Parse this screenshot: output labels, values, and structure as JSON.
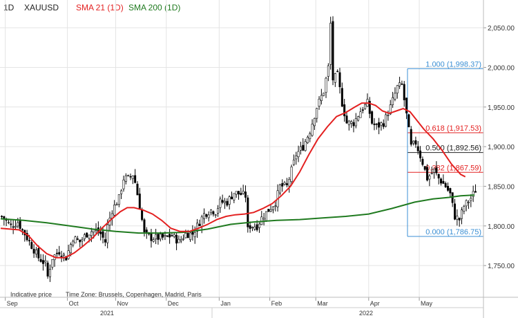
{
  "header": {
    "interval": "1D",
    "symbol": "XAUUSD",
    "sma21_label": "SMA 21  (1D)",
    "sma200_label": "SMA 200  (1D)"
  },
  "footer": {
    "price_note": "Indicative price",
    "timezone_note": "Time Zone: Brussels, Copenhagen, Madrid, Paris"
  },
  "colors": {
    "up": "#000000",
    "down": "#000000",
    "sma21": "#e32020",
    "sma200": "#1f7a1f",
    "fib_blue": "#3b8fd4",
    "fib_red": "#e32020",
    "fib_black": "#222222",
    "grid": "#e4e4e4"
  },
  "chart_data": {
    "type": "candlestick",
    "symbol": "XAUUSD",
    "ylim": [
      1710,
      2085
    ],
    "y_ticks": [
      1750,
      1800,
      1850,
      1900,
      1950,
      2000,
      2050
    ],
    "y_tick_labels": [
      "1,750.00",
      "1,800.00",
      "1,850.00",
      "1,900.00",
      "1,950.00",
      "2,000.00",
      "2,050.00"
    ],
    "x_tick_labels": [
      "Sep",
      "Oct",
      "Nov",
      "Dec",
      "Jan",
      "Feb",
      "Mar",
      "Apr",
      "May"
    ],
    "year_labels": [
      "2021",
      "2022"
    ],
    "close_points": [
      [
        0,
        1812
      ],
      [
        4,
        1800
      ],
      [
        7,
        1805
      ],
      [
        10,
        1790
      ],
      [
        13,
        1775
      ],
      [
        16,
        1760
      ],
      [
        19,
        1752
      ],
      [
        20,
        1736
      ],
      [
        22,
        1760
      ],
      [
        25,
        1768
      ],
      [
        28,
        1760
      ],
      [
        31,
        1785
      ],
      [
        34,
        1780
      ],
      [
        37,
        1790
      ],
      [
        40,
        1795
      ],
      [
        43,
        1790
      ],
      [
        45,
        1780
      ],
      [
        46,
        1800
      ],
      [
        48,
        1820
      ],
      [
        51,
        1835
      ],
      [
        53,
        1860
      ],
      [
        55,
        1860
      ],
      [
        57,
        1865
      ],
      [
        58,
        1855
      ],
      [
        60,
        1825
      ],
      [
        62,
        1790
      ],
      [
        65,
        1785
      ],
      [
        68,
        1785
      ],
      [
        71,
        1785
      ],
      [
        74,
        1788
      ],
      [
        77,
        1780
      ],
      [
        80,
        1790
      ],
      [
        83,
        1790
      ],
      [
        86,
        1805
      ],
      [
        88,
        1815
      ],
      [
        91,
        1820
      ],
      [
        93,
        1818
      ],
      [
        95,
        1830
      ],
      [
        98,
        1830
      ],
      [
        101,
        1842
      ],
      [
        104,
        1840
      ],
      [
        106,
        1838
      ],
      [
        107,
        1795
      ],
      [
        108,
        1800
      ],
      [
        111,
        1800
      ],
      [
        113,
        1810
      ],
      [
        116,
        1820
      ],
      [
        119,
        1830
      ],
      [
        121,
        1850
      ],
      [
        124,
        1850
      ],
      [
        126,
        1870
      ],
      [
        128,
        1890
      ],
      [
        131,
        1900
      ],
      [
        134,
        1920
      ],
      [
        137,
        1950
      ],
      [
        140,
        1970
      ],
      [
        142,
        2000
      ],
      [
        143,
        2055
      ],
      [
        144,
        1985
      ],
      [
        146,
        1990
      ],
      [
        148,
        1955
      ],
      [
        150,
        1930
      ],
      [
        153,
        1930
      ],
      [
        156,
        1945
      ],
      [
        159,
        1955
      ],
      [
        161,
        1930
      ],
      [
        163,
        1925
      ],
      [
        166,
        1930
      ],
      [
        169,
        1950
      ],
      [
        172,
        1975
      ],
      [
        174,
        1978
      ],
      [
        176,
        1940
      ],
      [
        178,
        1900
      ],
      [
        180,
        1905
      ],
      [
        183,
        1880
      ],
      [
        185,
        1860
      ],
      [
        188,
        1870
      ],
      [
        190,
        1860
      ],
      [
        193,
        1850
      ],
      [
        195,
        1840
      ],
      [
        197,
        1812
      ],
      [
        199,
        1808
      ],
      [
        201,
        1825
      ],
      [
        204,
        1835
      ],
      [
        206,
        1845
      ]
    ],
    "sma21": [
      [
        0,
        1797
      ],
      [
        8,
        1795
      ],
      [
        12,
        1788
      ],
      [
        16,
        1775
      ],
      [
        20,
        1765
      ],
      [
        24,
        1760
      ],
      [
        28,
        1760
      ],
      [
        32,
        1766
      ],
      [
        36,
        1775
      ],
      [
        40,
        1785
      ],
      [
        44,
        1797
      ],
      [
        48,
        1808
      ],
      [
        52,
        1818
      ],
      [
        55,
        1823
      ],
      [
        58,
        1823
      ],
      [
        62,
        1820
      ],
      [
        66,
        1815
      ],
      [
        70,
        1807
      ],
      [
        74,
        1797
      ],
      [
        78,
        1793
      ],
      [
        82,
        1793
      ],
      [
        86,
        1797
      ],
      [
        90,
        1802
      ],
      [
        94,
        1808
      ],
      [
        98,
        1812
      ],
      [
        102,
        1814
      ],
      [
        106,
        1815
      ],
      [
        110,
        1817
      ],
      [
        114,
        1822
      ],
      [
        118,
        1828
      ],
      [
        122,
        1838
      ],
      [
        126,
        1850
      ],
      [
        130,
        1868
      ],
      [
        134,
        1890
      ],
      [
        138,
        1910
      ],
      [
        142,
        1925
      ],
      [
        146,
        1938
      ],
      [
        150,
        1943
      ],
      [
        154,
        1950
      ],
      [
        157,
        1955
      ],
      [
        160,
        1955
      ],
      [
        163,
        1952
      ],
      [
        166,
        1945
      ],
      [
        169,
        1942
      ],
      [
        172,
        1945
      ],
      [
        175,
        1948
      ],
      [
        178,
        1944
      ],
      [
        181,
        1933
      ],
      [
        184,
        1922
      ],
      [
        188,
        1910
      ],
      [
        192,
        1895
      ],
      [
        196,
        1878
      ],
      [
        200,
        1865
      ],
      [
        202,
        1862
      ]
    ],
    "sma200": [
      [
        0,
        1809
      ],
      [
        10,
        1807
      ],
      [
        20,
        1804
      ],
      [
        30,
        1800
      ],
      [
        40,
        1796
      ],
      [
        50,
        1793
      ],
      [
        60,
        1791
      ],
      [
        70,
        1791
      ],
      [
        80,
        1792
      ],
      [
        90,
        1796
      ],
      [
        100,
        1802
      ],
      [
        110,
        1805
      ],
      [
        120,
        1807
      ],
      [
        130,
        1808
      ],
      [
        140,
        1810
      ],
      [
        150,
        1812
      ],
      [
        160,
        1815
      ],
      [
        170,
        1822
      ],
      [
        180,
        1830
      ],
      [
        188,
        1834
      ],
      [
        195,
        1836
      ],
      [
        200,
        1838
      ],
      [
        206,
        1839
      ]
    ],
    "fib_levels": [
      {
        "label": "1.000 (1,998.37)",
        "value": 1998.37,
        "color": "blue"
      },
      {
        "label": "0.618 (1,917.53)",
        "value": 1917.53,
        "color": "red"
      },
      {
        "label": "0.500 (1,892.56)",
        "value": 1892.56,
        "color": "black"
      },
      {
        "label": "0.382 (1,867.59)",
        "value": 1867.59,
        "color": "red"
      },
      {
        "label": "0.000 (1,786.75)",
        "value": 1786.75,
        "color": "blue"
      }
    ],
    "grid": true
  }
}
